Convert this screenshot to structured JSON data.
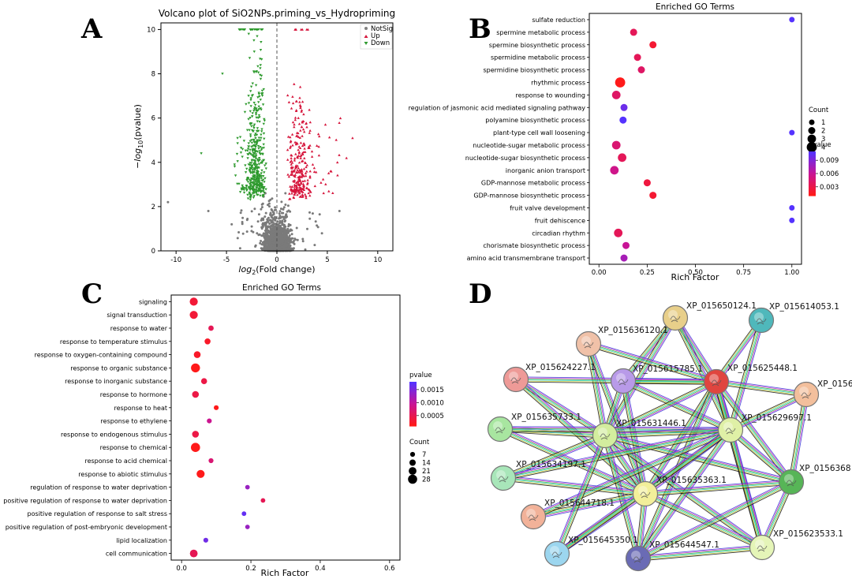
{
  "panel_labels": [
    "A",
    "B",
    "C",
    "D"
  ],
  "chart_data": [
    {
      "panel": "A",
      "type": "scatter",
      "title": "Volcano plot of SiO2NPs.priming_vs_Hydropriming",
      "xlabel_base": "log",
      "xlabel_sub": "2",
      "xlabel_rest": "(Fold change)",
      "ylabel_pre": "−log",
      "ylabel_sub": "10",
      "ylabel_rest": "(pvalue)",
      "xlim": [
        -11.5,
        11.5
      ],
      "ylim": [
        0,
        10.3
      ],
      "xticks": [
        -10,
        -5,
        0,
        5,
        10
      ],
      "yticks": [
        0,
        2,
        4,
        6,
        8,
        10
      ],
      "threshold_x": 0,
      "legend_position": "top-right",
      "series": [
        {
          "name": "NotSig",
          "color": "#808080",
          "marker": "circle"
        },
        {
          "name": "Up",
          "color": "#d6163c",
          "marker": "triangle-up"
        },
        {
          "name": "Down",
          "color": "#2e9a2e",
          "marker": "triangle-down"
        }
      ],
      "notable_points": [
        {
          "series": "Down",
          "x": -7.5,
          "y": 4.4
        },
        {
          "series": "Down",
          "x": -5.4,
          "y": 8.0
        },
        {
          "series": "Down",
          "x": -4.2,
          "y": 3.9
        },
        {
          "series": "NotSig",
          "x": -10.8,
          "y": 2.2
        },
        {
          "series": "NotSig",
          "x": -6.8,
          "y": 1.8
        },
        {
          "series": "Up",
          "x": 6.3,
          "y": 6.0
        },
        {
          "series": "Up",
          "x": 7.5,
          "y": 5.1
        },
        {
          "series": "Up",
          "x": 6.9,
          "y": 4.2
        },
        {
          "series": "NotSig",
          "x": 6.2,
          "y": 1.8
        },
        {
          "series": "Down",
          "x": -2.5,
          "y": 10.0
        },
        {
          "series": "Up",
          "x": 1.8,
          "y": 10.0
        }
      ]
    },
    {
      "panel": "B",
      "type": "scatter",
      "title": "Enriched GO Terms",
      "xlabel": "Rich Factor",
      "xlim": [
        -0.05,
        1.05
      ],
      "xticks": [
        0.0,
        0.25,
        0.5,
        0.75,
        1.0
      ],
      "xtick_labels": [
        "0.00",
        "0.25",
        "0.50",
        "0.75",
        "1.00"
      ],
      "grid": false,
      "categories": [
        "sulfate reduction",
        "spermine metabolic process",
        "spermine biosynthetic process",
        "spermidine metabolic process",
        "spermidine biosynthetic process",
        "rhythmic process",
        "response to wounding",
        "regulation of jasmonic acid mediated signaling pathway",
        "polyamine biosynthetic process",
        "plant-type cell wall loosening",
        "nucleotide-sugar metabolic process",
        "nucleotide-sugar biosynthetic process",
        "inorganic anion transport",
        "GDP-mannose metabolic process",
        "GDP-mannose biosynthetic process",
        "fruit valve development",
        "fruit dehiscence",
        "circadian rhythm",
        "chorismate biosynthetic process",
        "amino acid transmembrane transport"
      ],
      "rich_factor": [
        1.0,
        0.18,
        0.28,
        0.2,
        0.22,
        0.11,
        0.09,
        0.13,
        0.125,
        1.0,
        0.09,
        0.12,
        0.08,
        0.25,
        0.28,
        1.0,
        1.0,
        0.1,
        0.14,
        0.13
      ],
      "count": [
        1,
        2,
        2,
        2,
        2,
        4,
        3,
        2,
        2,
        1,
        3,
        3,
        3,
        2,
        2,
        1,
        1,
        3,
        2,
        2
      ],
      "pvalue": [
        0.011,
        0.0035,
        0.002,
        0.0035,
        0.004,
        0.001,
        0.004,
        0.01,
        0.011,
        0.011,
        0.0045,
        0.0035,
        0.0055,
        0.0025,
        0.002,
        0.011,
        0.011,
        0.0035,
        0.006,
        0.0075
      ],
      "count_legend": {
        "title": "Count",
        "values": [
          1,
          2,
          3,
          4
        ]
      },
      "color_legend": {
        "title": "pvalue",
        "min": 0.001,
        "max": 0.011,
        "ticks": [
          0.009,
          0.006,
          0.003
        ],
        "tick_labels": [
          "0.009",
          "0.006",
          "0.003"
        ],
        "low_color": "#ff1a1a",
        "high_color": "#5533ff"
      }
    },
    {
      "panel": "C",
      "type": "scatter",
      "title": "Enriched GO Terms",
      "xlabel": "Rich Factor",
      "xlim": [
        -0.03,
        0.63
      ],
      "xticks": [
        0.0,
        0.2,
        0.4,
        0.6
      ],
      "xtick_labels": [
        "0.0",
        "0.2",
        "0.4",
        "0.6"
      ],
      "grid": false,
      "categories": [
        "signaling",
        "signal transduction",
        "response to water",
        "response to temperature stimulus",
        "response to oxygen-containing compound",
        "response to organic substance",
        "response to inorganic substance",
        "response to hormone",
        "response to heat",
        "response to ethylene",
        "response to endogenous stimulus",
        "response to chemical",
        "response to acid chemical",
        "response to abiotic stimulus",
        "regulation of response to water deprivation",
        "positive regulation of response to water deprivation",
        "positive regulation of response to salt stress",
        "positive regulation of post-embryonic development",
        "lipid localization",
        "cell communication"
      ],
      "rich_factor": [
        0.035,
        0.035,
        0.085,
        0.075,
        0.045,
        0.04,
        0.065,
        0.04,
        0.1,
        0.08,
        0.04,
        0.04,
        0.085,
        0.055,
        0.19,
        0.235,
        0.18,
        0.19,
        0.07,
        0.035
      ],
      "count": [
        22,
        22,
        9,
        12,
        16,
        27,
        12,
        16,
        7,
        7,
        16,
        28,
        7,
        22,
        5,
        5,
        5,
        5,
        7,
        21
      ],
      "pvalue": [
        0.0003,
        0.0003,
        0.0005,
        0.0002,
        0.0002,
        0.0001,
        0.0004,
        0.0004,
        0.0001,
        0.0009,
        0.0004,
        0.0001,
        0.0007,
        0.0001,
        0.0013,
        0.0005,
        0.0017,
        0.0013,
        0.0016,
        0.0005
      ],
      "count_legend": {
        "title": "Count",
        "values": [
          7,
          14,
          21,
          28
        ]
      },
      "color_legend": {
        "title": "pvalue",
        "min": 0.0001,
        "max": 0.0018,
        "ticks": [
          0.0015,
          0.001,
          0.0005
        ],
        "tick_labels": [
          "0.0015",
          "0.0010",
          "0.0005"
        ],
        "low_color": "#ff1a1a",
        "high_color": "#5533ff"
      }
    }
  ],
  "network": {
    "panel": "D",
    "nodes": [
      {
        "id": "XP_015650124.1",
        "label": "XP_015650124.1",
        "color": "#e8cf8a"
      },
      {
        "id": "XP_015614053.1",
        "label": "XP_015614053.1",
        "color": "#4fb8bb"
      },
      {
        "id": "XP_015636120.1",
        "label": "XP_015636120.1",
        "color": "#f0c1a8"
      },
      {
        "id": "XP_015624227.1",
        "label": "XP_015624227.1",
        "color": "#ee9a97"
      },
      {
        "id": "XP_015615785.1",
        "label": "XP_015615785.1",
        "color": "#b89ae8"
      },
      {
        "id": "XP_015625448.1",
        "label": "XP_015625448.1",
        "color": "#e0453f"
      },
      {
        "id": "XP_0156x",
        "label": "XP_0156",
        "color": "#f3bf9c"
      },
      {
        "id": "XP_015635733.1",
        "label": "XP_015635733.1",
        "color": "#a8e6a0"
      },
      {
        "id": "XP_015631446.1",
        "label": "XP_015631446.1",
        "color": "#d3ed9e"
      },
      {
        "id": "XP_015629697.1",
        "label": "XP_015629697.1",
        "color": "#dff0a6"
      },
      {
        "id": "XP_015634197.1",
        "label": "XP_015634197.1",
        "color": "#a8e6b9"
      },
      {
        "id": "XP_0156368",
        "label": "XP_0156368",
        "color": "#57b557"
      },
      {
        "id": "XP_015635363.1",
        "label": "XP_015635363.1",
        "color": "#f2ef9a"
      },
      {
        "id": "XP_015644718.1",
        "label": "XP_015644718.1",
        "color": "#f2b299"
      },
      {
        "id": "XP_015623533.1",
        "label": "XP_015623533.1",
        "color": "#e5f5b8"
      },
      {
        "id": "XP_015645350.1",
        "label": "XP_015645350.1",
        "color": "#9cd6ef"
      },
      {
        "id": "XP_015644547.1",
        "label": "XP_015644547.1",
        "color": "#6a6bb5"
      }
    ],
    "edges": [
      [
        "XP_015650124.1",
        "XP_015625448.1"
      ],
      [
        "XP_015650124.1",
        "XP_015615785.1"
      ],
      [
        "XP_015650124.1",
        "XP_015631446.1"
      ],
      [
        "XP_015650124.1",
        "XP_015629697.1"
      ],
      [
        "XP_015614053.1",
        "XP_015625448.1"
      ],
      [
        "XP_015614053.1",
        "XP_015629697.1"
      ],
      [
        "XP_015636120.1",
        "XP_015625448.1"
      ],
      [
        "XP_015636120.1",
        "XP_015631446.1"
      ],
      [
        "XP_015636120.1",
        "XP_015635363.1"
      ],
      [
        "XP_015624227.1",
        "XP_015625448.1"
      ],
      [
        "XP_015624227.1",
        "XP_015631446.1"
      ],
      [
        "XP_015624227.1",
        "XP_015635363.1"
      ],
      [
        "XP_015615785.1",
        "XP_015625448.1"
      ],
      [
        "XP_015615785.1",
        "XP_015635363.1"
      ],
      [
        "XP_015615785.1",
        "XP_015631446.1"
      ],
      [
        "XP_015615785.1",
        "XP_015629697.1"
      ],
      [
        "XP_015625448.1",
        "XP_0156x"
      ],
      [
        "XP_015625448.1",
        "XP_015631446.1"
      ],
      [
        "XP_015625448.1",
        "XP_015629697.1"
      ],
      [
        "XP_015625448.1",
        "XP_015635363.1"
      ],
      [
        "XP_015625448.1",
        "XP_0156368"
      ],
      [
        "XP_015625448.1",
        "XP_015623533.1"
      ],
      [
        "XP_015625448.1",
        "XP_015644547.1"
      ],
      [
        "XP_0156x",
        "XP_0156368"
      ],
      [
        "XP_0156x",
        "XP_015629697.1"
      ],
      [
        "XP_015635733.1",
        "XP_015631446.1"
      ],
      [
        "XP_015635733.1",
        "XP_015635363.1"
      ],
      [
        "XP_015635733.1",
        "XP_015629697.1"
      ],
      [
        "XP_015631446.1",
        "XP_015629697.1"
      ],
      [
        "XP_015631446.1",
        "XP_015635363.1"
      ],
      [
        "XP_015631446.1",
        "XP_0156368"
      ],
      [
        "XP_015631446.1",
        "XP_015623533.1"
      ],
      [
        "XP_015631446.1",
        "XP_015644547.1"
      ],
      [
        "XP_015631446.1",
        "XP_015634197.1"
      ],
      [
        "XP_015629697.1",
        "XP_015635363.1"
      ],
      [
        "XP_015629697.1",
        "XP_0156368"
      ],
      [
        "XP_015629697.1",
        "XP_015623533.1"
      ],
      [
        "XP_015629697.1",
        "XP_015644547.1"
      ],
      [
        "XP_015634197.1",
        "XP_015635363.1"
      ],
      [
        "XP_015634197.1",
        "XP_015629697.1"
      ],
      [
        "XP_015635363.1",
        "XP_0156368"
      ],
      [
        "XP_015635363.1",
        "XP_015623533.1"
      ],
      [
        "XP_015635363.1",
        "XP_015644547.1"
      ],
      [
        "XP_015635363.1",
        "XP_015644718.1"
      ],
      [
        "XP_015635363.1",
        "XP_015645350.1"
      ],
      [
        "XP_015644718.1",
        "XP_015629697.1"
      ],
      [
        "XP_015645350.1",
        "XP_015631446.1"
      ],
      [
        "XP_015645350.1",
        "XP_015629697.1"
      ],
      [
        "XP_015644547.1",
        "XP_015623533.1"
      ],
      [
        "XP_015644547.1",
        "XP_0156368"
      ],
      [
        "XP_015623533.1",
        "XP_0156368"
      ]
    ],
    "edge_colors": [
      "#3b3bd6",
      "#cc33cc",
      "#33bb33",
      "#33cccc",
      "#cccc33",
      "#111111"
    ]
  }
}
